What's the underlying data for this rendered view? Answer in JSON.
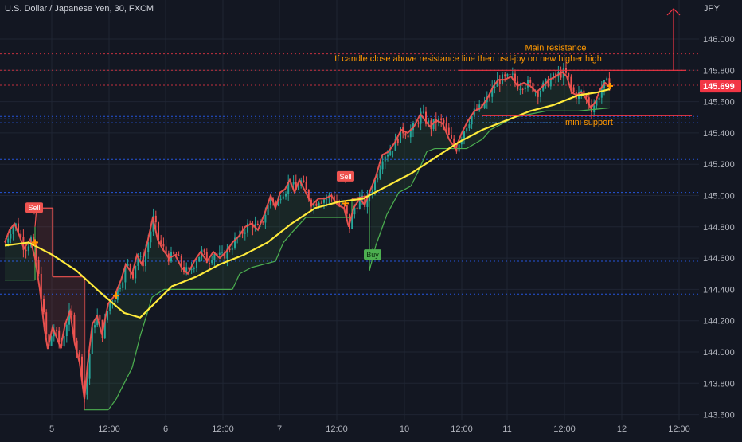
{
  "header": {
    "symbol_title": "U.S. Dollar / Japanese Yen, 30, FXCM",
    "currency": "JPY"
  },
  "colors": {
    "background": "#131722",
    "grid": "#1f2533",
    "up_candle": "#26a69a",
    "down_candle": "#ef5350",
    "ma_yellow": "#ffeb3b",
    "trail_green": "#4caf50",
    "trail_red": "#ef5350",
    "resistance": "#f23645",
    "annotation_text": "#ff9800",
    "blue_level": "#2962ff",
    "price_label_bg": "#f23645"
  },
  "chart_data": {
    "type": "candlestick",
    "title": "U.S. Dollar / Japanese Yen, 30, FXCM",
    "ylabel": "JPY",
    "ylim": [
      143.57,
      146.2
    ],
    "grid": true,
    "yticks": [
      "146.000",
      "145.800",
      "145.600",
      "145.400",
      "145.200",
      "145.000",
      "144.800",
      "144.600",
      "144.400",
      "144.200",
      "144.000",
      "143.800",
      "143.600"
    ],
    "xticks": [
      "5",
      "12:00",
      "6",
      "12:00",
      "7",
      "12:00",
      "10",
      "12:00",
      "11",
      "12:00",
      "12",
      "12:00"
    ],
    "close_path": [
      [
        0,
        144.7
      ],
      [
        6,
        144.78
      ],
      [
        12,
        144.82
      ],
      [
        18,
        144.75
      ],
      [
        24,
        144.66
      ],
      [
        32,
        144.72
      ],
      [
        38,
        144.6
      ],
      [
        44,
        144.4
      ],
      [
        50,
        144.14
      ],
      [
        54,
        144.02
      ],
      [
        60,
        144.16
      ],
      [
        66,
        144.08
      ],
      [
        70,
        144.03
      ],
      [
        76,
        144.18
      ],
      [
        82,
        144.26
      ],
      [
        88,
        144.05
      ],
      [
        94,
        143.93
      ],
      [
        100,
        143.7
      ],
      [
        104,
        143.92
      ],
      [
        110,
        144.18
      ],
      [
        116,
        144.23
      ],
      [
        122,
        144.11
      ],
      [
        130,
        144.31
      ],
      [
        138,
        144.36
      ],
      [
        146,
        144.46
      ],
      [
        152,
        144.56
      ],
      [
        160,
        144.5
      ],
      [
        166,
        144.62
      ],
      [
        172,
        144.56
      ],
      [
        180,
        144.72
      ],
      [
        186,
        144.86
      ],
      [
        192,
        144.72
      ],
      [
        198,
        144.66
      ],
      [
        206,
        144.6
      ],
      [
        214,
        144.62
      ],
      [
        222,
        144.54
      ],
      [
        230,
        144.5
      ],
      [
        238,
        144.58
      ],
      [
        246,
        144.64
      ],
      [
        254,
        144.58
      ],
      [
        262,
        144.64
      ],
      [
        270,
        144.6
      ],
      [
        278,
        144.64
      ],
      [
        286,
        144.7
      ],
      [
        294,
        144.74
      ],
      [
        302,
        144.8
      ],
      [
        310,
        144.82
      ],
      [
        318,
        144.78
      ],
      [
        326,
        144.88
      ],
      [
        334,
        145.0
      ],
      [
        340,
        144.92
      ],
      [
        346,
        145.02
      ],
      [
        352,
        145.04
      ],
      [
        358,
        145.1
      ],
      [
        364,
        145.02
      ],
      [
        370,
        145.1
      ],
      [
        378,
        145.02
      ],
      [
        386,
        144.94
      ],
      [
        394,
        144.98
      ],
      [
        402,
        144.98
      ],
      [
        410,
        145.0
      ],
      [
        418,
        144.94
      ],
      [
        426,
        144.92
      ],
      [
        432,
        144.8
      ],
      [
        438,
        144.92
      ],
      [
        446,
        144.98
      ],
      [
        452,
        144.94
      ],
      [
        458,
        145.02
      ],
      [
        466,
        145.12
      ],
      [
        474,
        145.26
      ],
      [
        482,
        145.28
      ],
      [
        490,
        145.34
      ],
      [
        498,
        145.42
      ],
      [
        506,
        145.4
      ],
      [
        514,
        145.44
      ],
      [
        522,
        145.52
      ],
      [
        528,
        145.48
      ],
      [
        534,
        145.44
      ],
      [
        542,
        145.48
      ],
      [
        550,
        145.46
      ],
      [
        558,
        145.36
      ],
      [
        566,
        145.3
      ],
      [
        574,
        145.4
      ],
      [
        582,
        145.48
      ],
      [
        590,
        145.54
      ],
      [
        598,
        145.56
      ],
      [
        606,
        145.62
      ],
      [
        614,
        145.7
      ],
      [
        620,
        145.74
      ],
      [
        628,
        145.74
      ],
      [
        636,
        145.76
      ],
      [
        644,
        145.7
      ],
      [
        652,
        145.72
      ],
      [
        660,
        145.7
      ],
      [
        668,
        145.66
      ],
      [
        676,
        145.7
      ],
      [
        684,
        145.74
      ],
      [
        692,
        145.76
      ],
      [
        700,
        145.79
      ],
      [
        706,
        145.76
      ],
      [
        712,
        145.66
      ],
      [
        718,
        145.64
      ],
      [
        724,
        145.66
      ],
      [
        730,
        145.62
      ],
      [
        736,
        145.56
      ],
      [
        742,
        145.6
      ],
      [
        748,
        145.68
      ],
      [
        754,
        145.72
      ],
      [
        760,
        145.7
      ]
    ],
    "ma_yellow": [
      [
        0,
        144.68
      ],
      [
        30,
        144.7
      ],
      [
        60,
        144.62
      ],
      [
        90,
        144.52
      ],
      [
        120,
        144.38
      ],
      [
        150,
        144.25
      ],
      [
        170,
        144.22
      ],
      [
        190,
        144.32
      ],
      [
        210,
        144.42
      ],
      [
        240,
        144.48
      ],
      [
        270,
        144.56
      ],
      [
        300,
        144.62
      ],
      [
        330,
        144.7
      ],
      [
        360,
        144.82
      ],
      [
        390,
        144.92
      ],
      [
        420,
        144.96
      ],
      [
        450,
        144.98
      ],
      [
        480,
        145.06
      ],
      [
        510,
        145.14
      ],
      [
        540,
        145.24
      ],
      [
        570,
        145.34
      ],
      [
        600,
        145.42
      ],
      [
        630,
        145.48
      ],
      [
        660,
        145.54
      ],
      [
        690,
        145.58
      ],
      [
        720,
        145.64
      ],
      [
        745,
        145.66
      ],
      [
        760,
        145.68
      ]
    ],
    "trailing_stop": [
      [
        0,
        144.46
      ],
      [
        38,
        144.46
      ],
      [
        38,
        144.8
      ],
      [
        40,
        144.92
      ],
      [
        60,
        144.92
      ],
      [
        60,
        144.48
      ],
      [
        100,
        144.48
      ],
      [
        100,
        143.63
      ],
      [
        130,
        143.63
      ],
      [
        140,
        143.7
      ],
      [
        160,
        143.9
      ],
      [
        170,
        144.1
      ],
      [
        185,
        144.35
      ],
      [
        200,
        144.4
      ],
      [
        286,
        144.4
      ],
      [
        295,
        144.5
      ],
      [
        310,
        144.54
      ],
      [
        340,
        144.58
      ],
      [
        350,
        144.7
      ],
      [
        360,
        144.76
      ],
      [
        378,
        144.86
      ],
      [
        436,
        144.86
      ],
      [
        436,
        144.98
      ],
      [
        458,
        145.0
      ],
      [
        458,
        144.52
      ],
      [
        466,
        144.68
      ],
      [
        480,
        144.88
      ],
      [
        495,
        145.02
      ],
      [
        510,
        145.06
      ],
      [
        520,
        145.16
      ],
      [
        530,
        145.28
      ],
      [
        540,
        145.3
      ],
      [
        580,
        145.3
      ],
      [
        600,
        145.36
      ],
      [
        610,
        145.42
      ],
      [
        640,
        145.5
      ],
      [
        680,
        145.54
      ],
      [
        720,
        145.54
      ],
      [
        760,
        145.56
      ]
    ],
    "signals": [
      {
        "label": "Sell",
        "x": 37,
        "price": 144.92
      },
      {
        "label": "Sell",
        "x": 428,
        "price": 145.12
      },
      {
        "label": "Buy",
        "x": 462,
        "price": 144.62
      }
    ],
    "horizontal_levels": {
      "main_resistance": 145.8,
      "mini_support": 145.51,
      "red_dotted": [
        145.905,
        145.86,
        145.8,
        145.705
      ],
      "blue_dotted": [
        145.505,
        145.49,
        145.465,
        145.23,
        145.02,
        144.58,
        144.37
      ]
    },
    "annotations": [
      "Main resistance",
      "If candle close above resistance line then usd-jpy on new higher high",
      "mini support"
    ],
    "last_price": "145.699"
  }
}
